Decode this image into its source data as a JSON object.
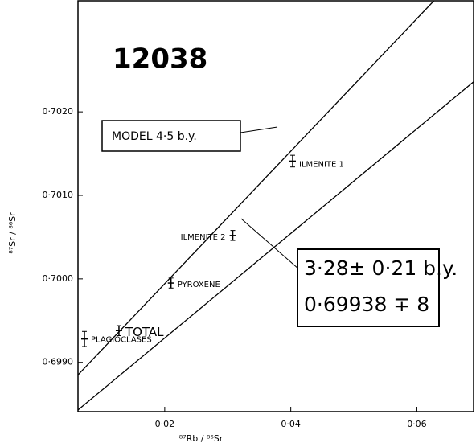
{
  "chart_data": {
    "type": "scatter",
    "title": "12038",
    "xlabel": "⁸⁷Rb / ⁸⁶Sr",
    "ylabel": "⁸⁷Sr / ⁸⁶Sr",
    "x": [
      0.00726,
      0.01274,
      0.021,
      0.0308,
      0.0403
    ],
    "y": [
      0.69928,
      0.69938,
      0.69995,
      0.70052,
      0.70141
    ],
    "yerr": [
      9e-05,
      6e-05,
      6e-05,
      6e-05,
      7e-05
    ],
    "labels": [
      "PLAGIOCLASES",
      "TOTAL",
      "PYROXENE",
      "ILMENITE 2",
      "ILMENITE 1"
    ],
    "color": "#000000",
    "lines": [
      {
        "name": "MODEL 4·5 b.y.",
        "x": [
          0.00624,
          0.0627
        ],
        "y": [
          0.69885,
          0.70333
        ]
      },
      {
        "x": [
          0.00624,
          0.069
        ],
        "y": [
          0.69843,
          0.70236
        ]
      }
    ],
    "isochron_text": [
      "3·28± 0·21 b.y.",
      "0·69938 ∓ 8"
    ],
    "xlim": [
      0.00624,
      0.069
    ],
    "ylim": [
      0.69841,
      0.70333
    ],
    "xticks": [
      {
        "value": 0.02,
        "label": "0·02"
      },
      {
        "value": 0.04,
        "label": "0·04"
      },
      {
        "value": 0.06,
        "label": "0·06"
      }
    ],
    "yticks": [
      {
        "value": 0.699,
        "label": "0·6990"
      },
      {
        "value": 0.7,
        "label": "0·7000"
      },
      {
        "value": 0.701,
        "label": "0·7010"
      },
      {
        "value": 0.702,
        "label": "0·7020"
      }
    ]
  }
}
